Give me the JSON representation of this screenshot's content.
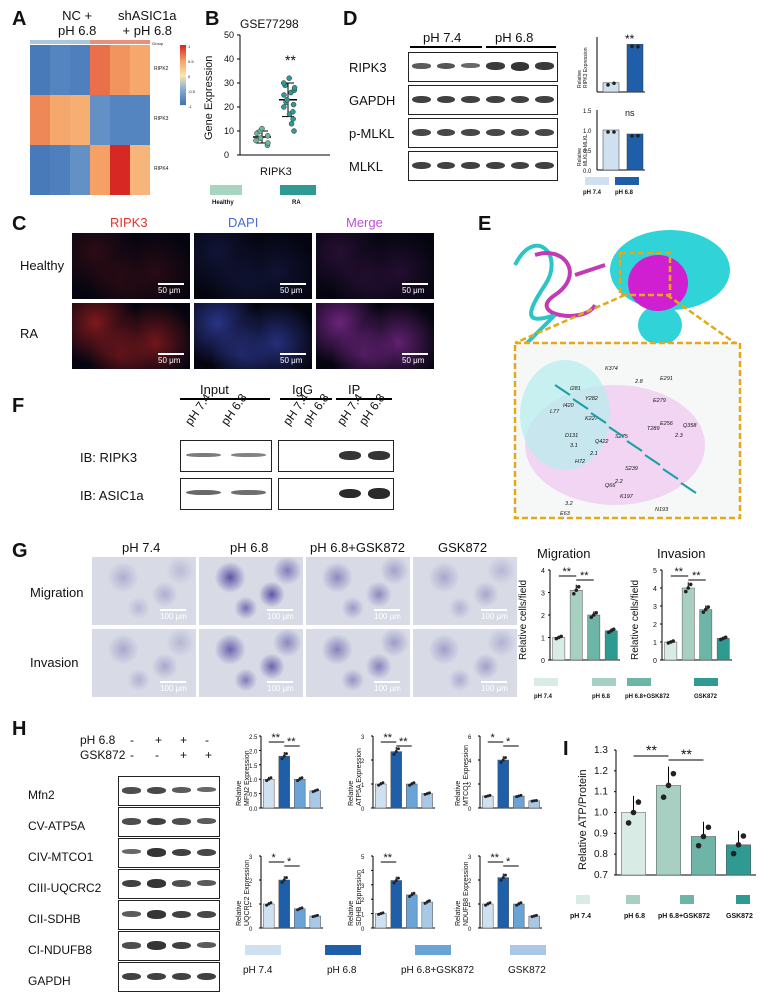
{
  "panels": {
    "A": "A",
    "B": "B",
    "C": "C",
    "D": "D",
    "E": "E",
    "F": "F",
    "G": "G",
    "H": "H",
    "I": "I"
  },
  "colors": {
    "c1": "#d9ebe5",
    "c2": "#a8d0c2",
    "c3": "#6fb5a7",
    "c4": "#2f9a92",
    "blue1": "#cfe0f0",
    "blue2": "#1f5faa",
    "blue3": "#6aa3d6",
    "blue4": "#a9c8e6"
  },
  "panelA": {
    "col1": "NC +\npH 6.8",
    "col2": "shASIC1a\n+ pH 6.8",
    "rows": [
      "RIPK2",
      "RIPK3",
      "RIPK4"
    ],
    "group_label": "Group",
    "scale_ticks": [
      "1",
      "0.5",
      "0",
      "-0.5",
      "-1"
    ],
    "values": [
      [
        -0.9,
        -0.8,
        -0.85,
        0.7,
        0.55,
        0.45
      ],
      [
        0.6,
        0.45,
        0.4,
        -0.7,
        -0.8,
        -0.8
      ],
      [
        -0.9,
        -0.85,
        -0.7,
        0.5,
        1.0,
        0.35
      ]
    ]
  },
  "chart_data": [
    {
      "id": "B",
      "type": "scatter",
      "title": "GSE77298",
      "ylabel": "Gene Expression",
      "xlabel": "RIPK3",
      "ylim": [
        0,
        50
      ],
      "yticks": [
        0,
        10,
        20,
        30,
        40,
        50
      ],
      "series": [
        {
          "name": "Healthy",
          "mean": 7.5,
          "sd": 2.5,
          "points": [
            4,
            5,
            6,
            7,
            8,
            9,
            10,
            11
          ]
        },
        {
          "name": "RA",
          "mean": 23,
          "sd": 7,
          "points": [
            10,
            13,
            15,
            17,
            18,
            20,
            21,
            22,
            23,
            25,
            26,
            27,
            28,
            29,
            30,
            32
          ]
        }
      ],
      "annotations": [
        "**"
      ]
    },
    {
      "id": "D-top",
      "type": "bar",
      "ylabel": "Relative\nRIPK3 Expression",
      "categories": [
        "pH 7.4",
        "pH 6.8"
      ],
      "values": [
        1,
        5.2
      ],
      "ylim": [
        0,
        6
      ],
      "annotations": [
        "**"
      ]
    },
    {
      "id": "D-bottom",
      "type": "bar",
      "ylabel": "Relative\nMLKL/p-MLKL",
      "categories": [
        "pH 7.4",
        "pH 6.8"
      ],
      "values": [
        1.0,
        0.9
      ],
      "ylim": [
        0,
        1.5
      ],
      "yticks": [
        0.0,
        0.5,
        1.0,
        1.5
      ],
      "annotations": [
        "ns"
      ]
    },
    {
      "id": "G-migration",
      "type": "bar",
      "title": "Migration",
      "ylabel": "Relative cells/field",
      "categories": [
        "pH 7.4",
        "pH 6.8",
        "pH 6.8+GSK872",
        "GSK872"
      ],
      "values": [
        1.0,
        3.1,
        2.0,
        1.3
      ],
      "ylim": [
        0,
        4
      ],
      "yticks": [
        0,
        1,
        2,
        3,
        4
      ],
      "annotations": [
        "**",
        "**"
      ]
    },
    {
      "id": "G-invasion",
      "type": "bar",
      "title": "Invasion",
      "ylabel": "Relative cells/field",
      "categories": [
        "pH 7.4",
        "pH 6.8",
        "pH 6.8+GSK872",
        "GSK872"
      ],
      "values": [
        1.0,
        4.0,
        2.8,
        1.2
      ],
      "ylim": [
        0,
        5
      ],
      "yticks": [
        0,
        1,
        2,
        3,
        4,
        5
      ],
      "annotations": [
        "**",
        "**"
      ]
    },
    {
      "id": "H-MFN2",
      "type": "bar",
      "ylabel": "Relative\nMFN2 Expression",
      "values": [
        1.0,
        1.8,
        1.0,
        0.6
      ],
      "ylim": [
        0,
        2.5
      ],
      "yticks": [
        0.0,
        0.5,
        1.0,
        1.5,
        2.0,
        2.5
      ],
      "annotations": [
        "**",
        "**"
      ]
    },
    {
      "id": "H-ATP5A",
      "type": "bar",
      "ylabel": "Relative\nATP5A Expression",
      "values": [
        1.0,
        2.35,
        1.0,
        0.6
      ],
      "ylim": [
        0,
        3
      ],
      "yticks": [
        0,
        1,
        2,
        3
      ],
      "annotations": [
        "**",
        "**"
      ]
    },
    {
      "id": "H-MTCO1",
      "type": "bar",
      "ylabel": "Relative\nMTCO1 Expression",
      "values": [
        1.0,
        4.0,
        1.0,
        0.6
      ],
      "ylim": [
        0,
        6
      ],
      "yticks": [
        0,
        2,
        4,
        6
      ],
      "annotations": [
        "*",
        "*"
      ]
    },
    {
      "id": "H-UQCRC2",
      "type": "bar",
      "ylabel": "Relative\nUQCRC2 Expression",
      "values": [
        1.0,
        2.0,
        0.8,
        0.5
      ],
      "ylim": [
        0,
        3
      ],
      "yticks": [
        0,
        1,
        2,
        3
      ],
      "annotations": [
        "*",
        "*"
      ]
    },
    {
      "id": "H-SDHB",
      "type": "bar",
      "ylabel": "Relative\nSDHB Expression",
      "values": [
        1.0,
        3.3,
        2.3,
        1.8
      ],
      "ylim": [
        0,
        5
      ],
      "yticks": [
        0,
        1,
        2,
        3,
        4,
        5
      ],
      "annotations": [
        "**"
      ]
    },
    {
      "id": "H-NDUFB8",
      "type": "bar",
      "ylabel": "Relative\nNDUFB8 Expression",
      "values": [
        1.0,
        2.1,
        1.0,
        0.5
      ],
      "ylim": [
        0,
        3
      ],
      "yticks": [
        0,
        1,
        2,
        3
      ],
      "annotations": [
        "**",
        "*"
      ]
    },
    {
      "id": "I",
      "type": "bar",
      "ylabel": "Relative ATP/Protein",
      "categories": [
        "pH 7.4",
        "pH 6.8",
        "pH 6.8+GSK872",
        "GSK872"
      ],
      "values": [
        1.0,
        1.13,
        0.885,
        0.845
      ],
      "ylim": [
        0.7,
        1.3
      ],
      "yticks": [
        0.7,
        0.8,
        0.9,
        1.0,
        1.1,
        1.2,
        1.3
      ],
      "annotations": [
        "**",
        "**"
      ]
    }
  ],
  "panelB_legend": [
    "Healthy",
    "RA"
  ],
  "panelC": {
    "cols": [
      "RIPK3",
      "DAPI",
      "Merge"
    ],
    "rows": [
      "Healthy",
      "RA"
    ],
    "scalebar": "50 μm"
  },
  "panelD": {
    "groups": [
      "pH 7.4",
      "pH 6.8"
    ],
    "blots": [
      "RIPK3",
      "GAPDH",
      "p-MLKL",
      "MLKL"
    ],
    "legend": [
      "pH 7.4",
      "pH 6.8"
    ]
  },
  "panelE": {
    "residues": [
      "K374",
      "E291",
      "2.8",
      "I281",
      "Y282",
      "E279",
      "I420",
      "L77",
      "K227",
      "E256",
      "Q358",
      "2.3",
      "T289",
      "D131",
      "Q422",
      "S275",
      "H72",
      "S239",
      "K197",
      "Q66",
      "E63",
      "N193",
      "3.1",
      "2.2",
      "3.2",
      "2.1"
    ]
  },
  "panelF": {
    "input": "Input",
    "igg": "IgG",
    "ip": "IP",
    "lanes": [
      "pH 7.4",
      "pH 6.8",
      "pH 7.4",
      "pH 6.8",
      "pH 7.4",
      "pH 6.8"
    ],
    "blots": [
      "IB: RIPK3",
      "IB: ASIC1a"
    ]
  },
  "panelG": {
    "cols": [
      "pH 7.4",
      "pH 6.8",
      "pH 6.8+GSK872",
      "GSK872"
    ],
    "rows": [
      "Migration",
      "Invasion"
    ],
    "scalebar": "100 μm",
    "legend": [
      "pH 7.4",
      "pH 6.8",
      "pH 6.8+GSK872",
      "GSK872"
    ]
  },
  "panelH": {
    "treat": [
      "pH 6.8",
      "GSK872"
    ],
    "signs": [
      [
        "-",
        "+",
        "+",
        "-"
      ],
      [
        "-",
        "-",
        "+",
        "+"
      ]
    ],
    "blots": [
      "Mfn2",
      "CV-ATP5A",
      "CIV-MTCO1",
      "CIII-UQCRC2",
      "CII-SDHB",
      "CI-NDUFB8",
      "GAPDH"
    ],
    "legend": [
      "pH 7.4",
      "pH 6.8",
      "pH 6.8+GSK872",
      "GSK872"
    ]
  },
  "panelI_legend": [
    "pH 7.4",
    "pH 6.8",
    "pH 6.8+GSK872",
    "GSK872"
  ]
}
